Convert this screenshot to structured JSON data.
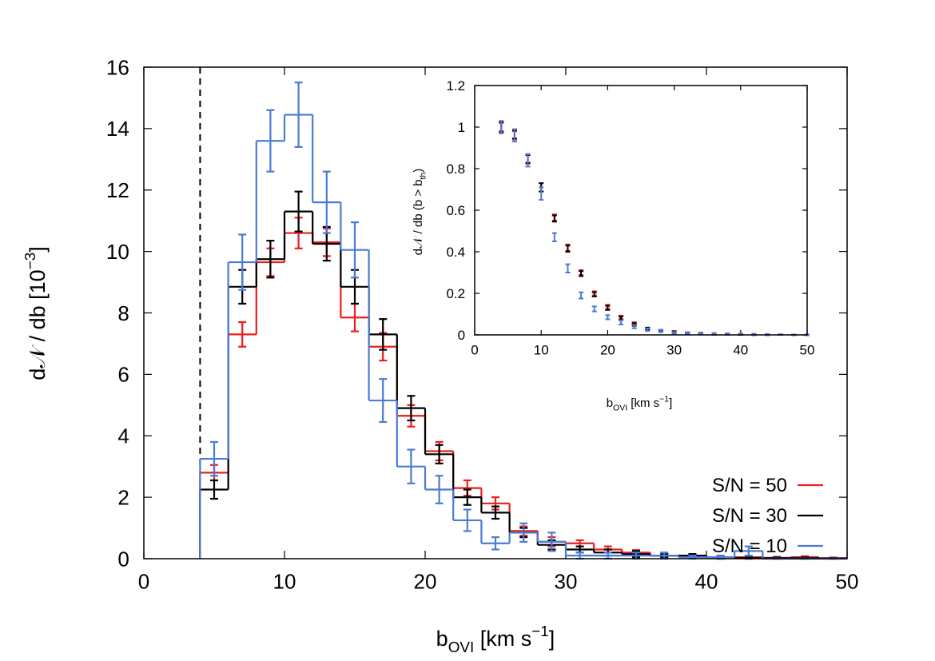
{
  "chart_data": [
    {
      "type": "histogram",
      "bins": [
        4,
        6,
        8,
        10,
        12,
        14,
        16,
        18,
        20,
        22,
        24,
        26,
        28,
        30,
        32,
        34,
        36,
        38,
        40,
        42,
        44,
        46,
        48,
        50
      ],
      "series": [
        {
          "name": "S/N = 50",
          "color": "#ee1c1c",
          "values": [
            2.8,
            7.3,
            9.65,
            10.6,
            10.3,
            7.85,
            6.9,
            4.65,
            3.5,
            2.3,
            1.8,
            0.9,
            0.55,
            0.5,
            0.3,
            0.2,
            0.1,
            0.1,
            0.05,
            0.05,
            0.03,
            0.05,
            0.02
          ],
          "errors": [
            0.25,
            0.4,
            0.45,
            0.5,
            0.45,
            0.45,
            0.45,
            0.35,
            0.3,
            0.25,
            0.2,
            0.15,
            0.15,
            0.1,
            0.1,
            0.08,
            0.05,
            0.05,
            0.05,
            0.03,
            0.03,
            0.03,
            0.02
          ]
        },
        {
          "name": "S/N = 30",
          "color": "#000000",
          "values": [
            2.25,
            8.85,
            9.75,
            11.3,
            10.25,
            8.85,
            7.3,
            4.9,
            3.4,
            2.0,
            1.5,
            0.85,
            0.45,
            0.3,
            0.2,
            0.15,
            0.1,
            0.1,
            0.05,
            0.02,
            0.02,
            0.02,
            0.01
          ],
          "errors": [
            0.3,
            0.55,
            0.6,
            0.65,
            0.55,
            0.55,
            0.5,
            0.4,
            0.3,
            0.25,
            0.2,
            0.15,
            0.15,
            0.1,
            0.1,
            0.1,
            0.05,
            0.05,
            0.05,
            0.02,
            0.02,
            0.02,
            0.01
          ]
        },
        {
          "name": "S/N = 10",
          "color": "#4a7bd6",
          "values": [
            3.25,
            9.65,
            13.6,
            14.45,
            11.6,
            10.05,
            5.15,
            3.0,
            2.25,
            1.25,
            0.5,
            0.85,
            0.55,
            0.1,
            0.1,
            0.1,
            0.1,
            0.05,
            0.05,
            0.25,
            0,
            0,
            0
          ],
          "errors": [
            0.55,
            0.9,
            1.0,
            1.05,
            1.0,
            0.9,
            0.7,
            0.55,
            0.45,
            0.35,
            0.2,
            0.3,
            0.3,
            0.1,
            0.1,
            0.1,
            0.1,
            0.05,
            0.05,
            0.15,
            0,
            0,
            0
          ]
        }
      ],
      "vline": 4,
      "xlim": [
        0,
        50
      ],
      "xticks": [
        0,
        10,
        20,
        30,
        40,
        50
      ],
      "ylim": [
        0,
        16
      ],
      "yticks": [
        0,
        2,
        4,
        6,
        8,
        10,
        12,
        14,
        16
      ],
      "xlabel": [
        {
          "text": "b"
        },
        {
          "sub": "OVI"
        },
        {
          "text": " [km s"
        },
        {
          "sup": "−1"
        },
        {
          "text": "]"
        }
      ],
      "ylabel": [
        {
          "text": "d𝒩 / db [10"
        },
        {
          "sup": "−3"
        },
        {
          "text": "]"
        }
      ],
      "legend": "lower right"
    },
    {
      "type": "scatter",
      "x": [
        4,
        6,
        8,
        10,
        12,
        14,
        16,
        18,
        20,
        22,
        24,
        26,
        28,
        30,
        32,
        34,
        36,
        38,
        40,
        42,
        44,
        46,
        48,
        50
      ],
      "series": [
        {
          "color": "#ee1c1c",
          "values": [
            1.0,
            0.96,
            0.85,
            0.71,
            0.565,
            0.42,
            0.3,
            0.2,
            0.135,
            0.085,
            0.055,
            0.03,
            0.02,
            0.015,
            0.01,
            0.008,
            0.006,
            0.005,
            0.004,
            0.003,
            0.002,
            0.002,
            0.001,
            0
          ],
          "errors": [
            0.02,
            0.02,
            0.02,
            0.02,
            0.015,
            0.015,
            0.012,
            0.01,
            0.01,
            0.008,
            0.006,
            0.005,
            0.004,
            0.004,
            0.003,
            0.003,
            0.003,
            0.002,
            0.002,
            0.002,
            0.002,
            0.001,
            0.001,
            0.001
          ]
        },
        {
          "color": "#000000",
          "values": [
            1.0,
            0.965,
            0.845,
            0.71,
            0.56,
            0.415,
            0.295,
            0.195,
            0.13,
            0.08,
            0.05,
            0.03,
            0.018,
            0.012,
            0.008,
            0.005,
            0.004,
            0.003,
            0.002,
            0.001,
            0.001,
            0.001,
            0,
            0
          ],
          "errors": [
            0.025,
            0.02,
            0.02,
            0.02,
            0.015,
            0.015,
            0.012,
            0.01,
            0.01,
            0.008,
            0.006,
            0.005,
            0.004,
            0.004,
            0.003,
            0.003,
            0.003,
            0.002,
            0.002,
            0.002,
            0.002,
            0.001,
            0.001,
            0.001
          ]
        },
        {
          "color": "#4a7bd6",
          "values": [
            1.0,
            0.96,
            0.84,
            0.68,
            0.47,
            0.32,
            0.19,
            0.125,
            0.085,
            0.06,
            0.04,
            0.025,
            0.02,
            0.01,
            0.008,
            0.006,
            0.005,
            0.004,
            0.003,
            0.002,
            0.002,
            0.001,
            0.001,
            0
          ],
          "errors": [
            0.03,
            0.03,
            0.03,
            0.03,
            0.02,
            0.02,
            0.015,
            0.012,
            0.01,
            0.01,
            0.008,
            0.006,
            0.005,
            0.004,
            0.004,
            0.003,
            0.003,
            0.003,
            0.002,
            0.002,
            0.002,
            0.001,
            0.001,
            0.001
          ]
        }
      ],
      "xlim": [
        0,
        50
      ],
      "xticks": [
        0,
        10,
        20,
        30,
        40,
        50
      ],
      "ylim": [
        0,
        1.2
      ],
      "yticks": [
        0,
        0.2,
        0.4,
        0.6,
        0.8,
        1,
        1.2
      ],
      "xlabel": [
        {
          "text": "b"
        },
        {
          "sub": "OVI"
        },
        {
          "text": " [km s"
        },
        {
          "sup": "−1"
        },
        {
          "text": "]"
        }
      ],
      "ylabel": [
        {
          "text": "d𝒩 / db (b > b"
        },
        {
          "sub": "th"
        },
        {
          "text": ")"
        }
      ]
    }
  ]
}
